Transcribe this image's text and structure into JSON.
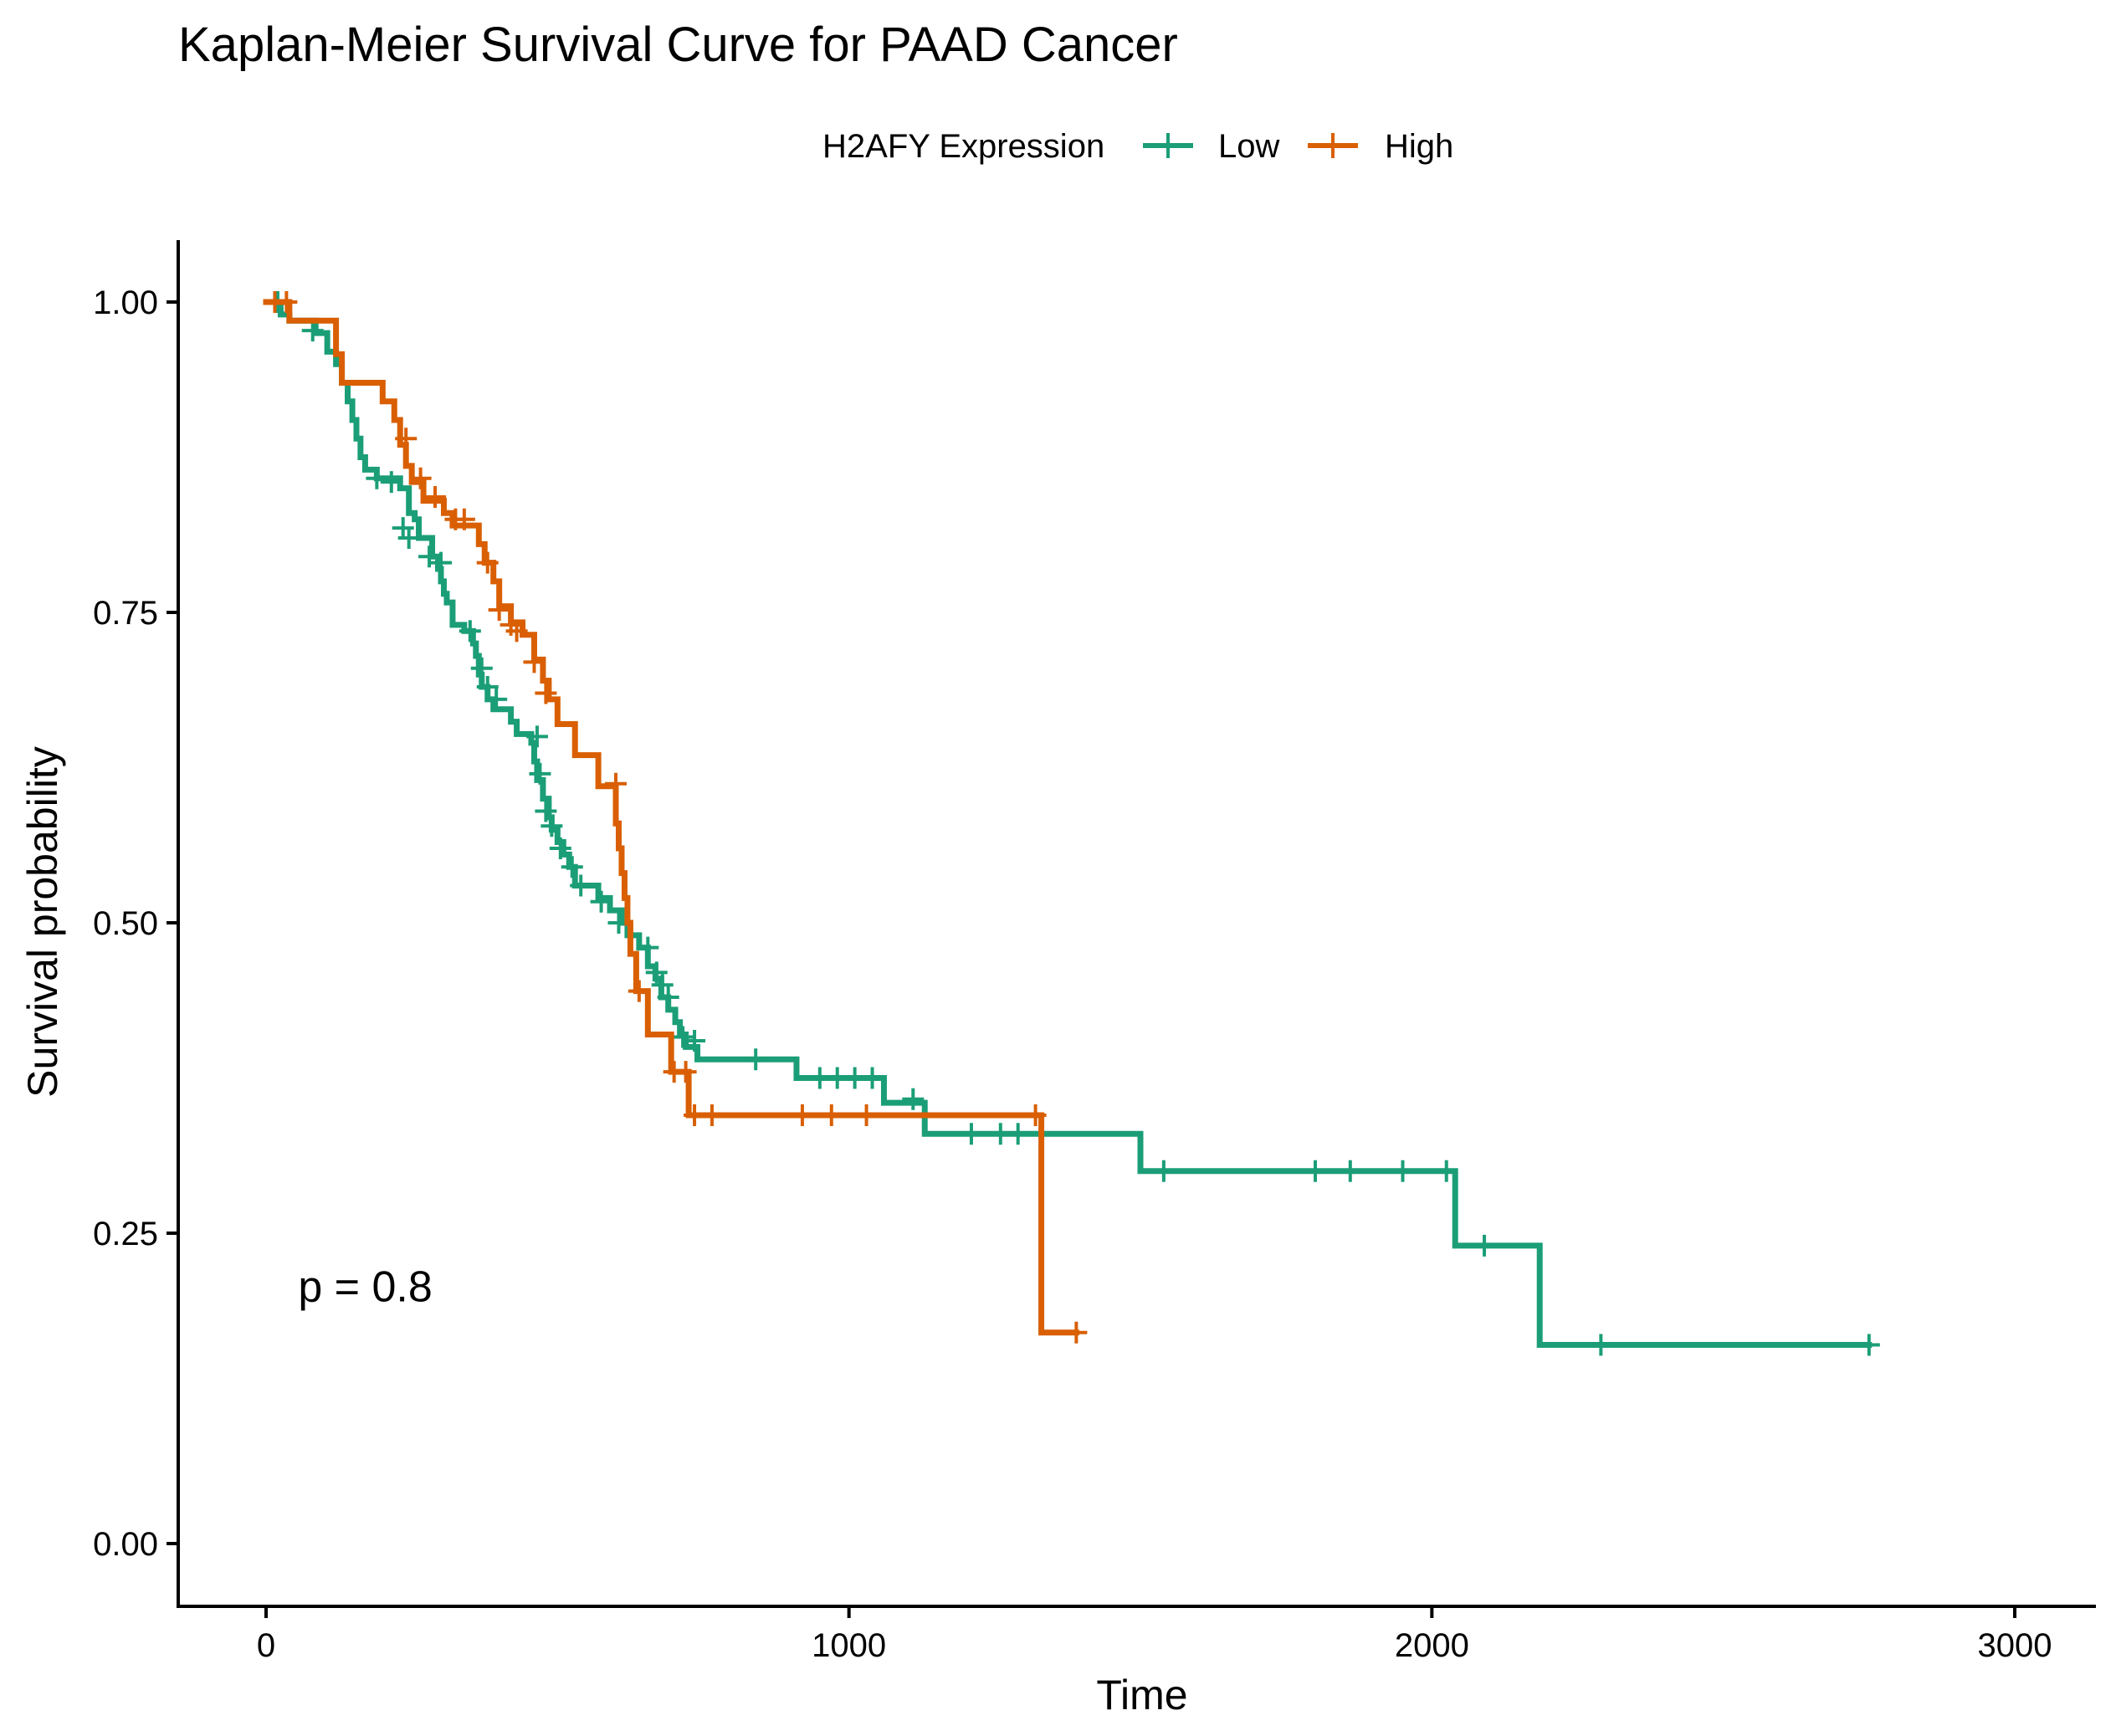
{
  "chart_data": {
    "type": "line",
    "subtype": "kaplan-meier step",
    "title": "Kaplan-Meier Survival Curve for PAAD Cancer",
    "xlabel": "Time",
    "ylabel": "Survival probability",
    "xlim": [
      -150,
      3150
    ],
    "ylim": [
      -0.05,
      1.05
    ],
    "xticks": [
      0,
      1000,
      2000,
      3000
    ],
    "xtick_labels": [
      "0",
      "1000",
      "2000",
      "3000"
    ],
    "yticks": [
      0,
      0.25,
      0.5,
      0.75,
      1.0
    ],
    "ytick_labels": [
      "0.00",
      "0.25",
      "0.50",
      "0.75",
      "1.00"
    ],
    "grid": false,
    "legend": {
      "title": "H2AFY Expression",
      "position": "top"
    },
    "annotation": "p = 0.8",
    "annotation_pos": {
      "x": 55,
      "y": 0.195
    },
    "series": [
      {
        "name": "Low",
        "color": "#1b9e77",
        "steps": [
          [
            0,
            1.0
          ],
          [
            25,
            0.99
          ],
          [
            40,
            0.985
          ],
          [
            85,
            0.975
          ],
          [
            105,
            0.96
          ],
          [
            120,
            0.95
          ],
          [
            130,
            0.935
          ],
          [
            140,
            0.92
          ],
          [
            148,
            0.905
          ],
          [
            155,
            0.89
          ],
          [
            162,
            0.875
          ],
          [
            170,
            0.865
          ],
          [
            190,
            0.858
          ],
          [
            230,
            0.85
          ],
          [
            245,
            0.83
          ],
          [
            255,
            0.825
          ],
          [
            262,
            0.81
          ],
          [
            285,
            0.795
          ],
          [
            295,
            0.785
          ],
          [
            300,
            0.775
          ],
          [
            305,
            0.765
          ],
          [
            310,
            0.758
          ],
          [
            320,
            0.74
          ],
          [
            340,
            0.735
          ],
          [
            355,
            0.725
          ],
          [
            360,
            0.715
          ],
          [
            365,
            0.7
          ],
          [
            370,
            0.69
          ],
          [
            380,
            0.68
          ],
          [
            390,
            0.672
          ],
          [
            420,
            0.662
          ],
          [
            430,
            0.652
          ],
          [
            455,
            0.645
          ],
          [
            460,
            0.63
          ],
          [
            465,
            0.615
          ],
          [
            475,
            0.6
          ],
          [
            485,
            0.585
          ],
          [
            490,
            0.575
          ],
          [
            500,
            0.565
          ],
          [
            510,
            0.555
          ],
          [
            520,
            0.545
          ],
          [
            530,
            0.53
          ],
          [
            570,
            0.52
          ],
          [
            590,
            0.51
          ],
          [
            610,
            0.5
          ],
          [
            620,
            0.49
          ],
          [
            640,
            0.48
          ],
          [
            655,
            0.465
          ],
          [
            668,
            0.455
          ],
          [
            678,
            0.44
          ],
          [
            690,
            0.43
          ],
          [
            702,
            0.42
          ],
          [
            710,
            0.41
          ],
          [
            720,
            0.4
          ],
          [
            740,
            0.39
          ],
          [
            910,
            0.375
          ],
          [
            1060,
            0.355
          ],
          [
            1130,
            0.33
          ],
          [
            1500,
            0.3
          ],
          [
            2040,
            0.24
          ],
          [
            2185,
            0.16
          ],
          [
            2750,
            0.16
          ]
        ],
        "censored": [
          [
            20,
            1.0
          ],
          [
            80,
            0.977
          ],
          [
            190,
            0.858
          ],
          [
            215,
            0.855
          ],
          [
            235,
            0.818
          ],
          [
            245,
            0.81
          ],
          [
            280,
            0.795
          ],
          [
            300,
            0.79
          ],
          [
            350,
            0.735
          ],
          [
            370,
            0.705
          ],
          [
            380,
            0.69
          ],
          [
            395,
            0.68
          ],
          [
            465,
            0.65
          ],
          [
            470,
            0.62
          ],
          [
            480,
            0.59
          ],
          [
            490,
            0.578
          ],
          [
            505,
            0.56
          ],
          [
            525,
            0.545
          ],
          [
            540,
            0.53
          ],
          [
            575,
            0.517
          ],
          [
            605,
            0.5
          ],
          [
            655,
            0.48
          ],
          [
            670,
            0.46
          ],
          [
            680,
            0.45
          ],
          [
            690,
            0.44
          ],
          [
            715,
            0.408
          ],
          [
            735,
            0.405
          ],
          [
            840,
            0.39
          ],
          [
            950,
            0.375
          ],
          [
            980,
            0.375
          ],
          [
            1010,
            0.375
          ],
          [
            1040,
            0.375
          ],
          [
            1110,
            0.358
          ],
          [
            1210,
            0.33
          ],
          [
            1260,
            0.33
          ],
          [
            1290,
            0.33
          ],
          [
            1540,
            0.3
          ],
          [
            1800,
            0.3
          ],
          [
            1860,
            0.3
          ],
          [
            1950,
            0.3
          ],
          [
            2025,
            0.3
          ],
          [
            2090,
            0.24
          ],
          [
            2290,
            0.16
          ],
          [
            2750,
            0.16
          ]
        ]
      },
      {
        "name": "High",
        "color": "#d95f02",
        "steps": [
          [
            0,
            1.0
          ],
          [
            40,
            0.985
          ],
          [
            120,
            0.958
          ],
          [
            130,
            0.935
          ],
          [
            200,
            0.92
          ],
          [
            220,
            0.905
          ],
          [
            230,
            0.885
          ],
          [
            240,
            0.868
          ],
          [
            250,
            0.855
          ],
          [
            270,
            0.84
          ],
          [
            305,
            0.83
          ],
          [
            320,
            0.82
          ],
          [
            365,
            0.805
          ],
          [
            375,
            0.79
          ],
          [
            390,
            0.775
          ],
          [
            400,
            0.755
          ],
          [
            420,
            0.742
          ],
          [
            440,
            0.732
          ],
          [
            460,
            0.712
          ],
          [
            475,
            0.695
          ],
          [
            485,
            0.68
          ],
          [
            500,
            0.66
          ],
          [
            530,
            0.635
          ],
          [
            570,
            0.61
          ],
          [
            600,
            0.58
          ],
          [
            605,
            0.56
          ],
          [
            610,
            0.54
          ],
          [
            615,
            0.52
          ],
          [
            620,
            0.5
          ],
          [
            625,
            0.475
          ],
          [
            635,
            0.445
          ],
          [
            655,
            0.41
          ],
          [
            695,
            0.38
          ],
          [
            725,
            0.345
          ],
          [
            1330,
            0.17
          ],
          [
            1390,
            0.17
          ]
        ],
        "censored": [
          [
            15,
            1.0
          ],
          [
            35,
            1.0
          ],
          [
            240,
            0.89
          ],
          [
            265,
            0.858
          ],
          [
            290,
            0.843
          ],
          [
            325,
            0.825
          ],
          [
            340,
            0.825
          ],
          [
            380,
            0.79
          ],
          [
            400,
            0.752
          ],
          [
            420,
            0.74
          ],
          [
            430,
            0.735
          ],
          [
            460,
            0.71
          ],
          [
            480,
            0.685
          ],
          [
            600,
            0.612
          ],
          [
            640,
            0.445
          ],
          [
            700,
            0.38
          ],
          [
            720,
            0.38
          ],
          [
            735,
            0.345
          ],
          [
            765,
            0.345
          ],
          [
            920,
            0.345
          ],
          [
            970,
            0.345
          ],
          [
            1030,
            0.345
          ],
          [
            1320,
            0.345
          ],
          [
            1390,
            0.17
          ]
        ]
      }
    ]
  }
}
